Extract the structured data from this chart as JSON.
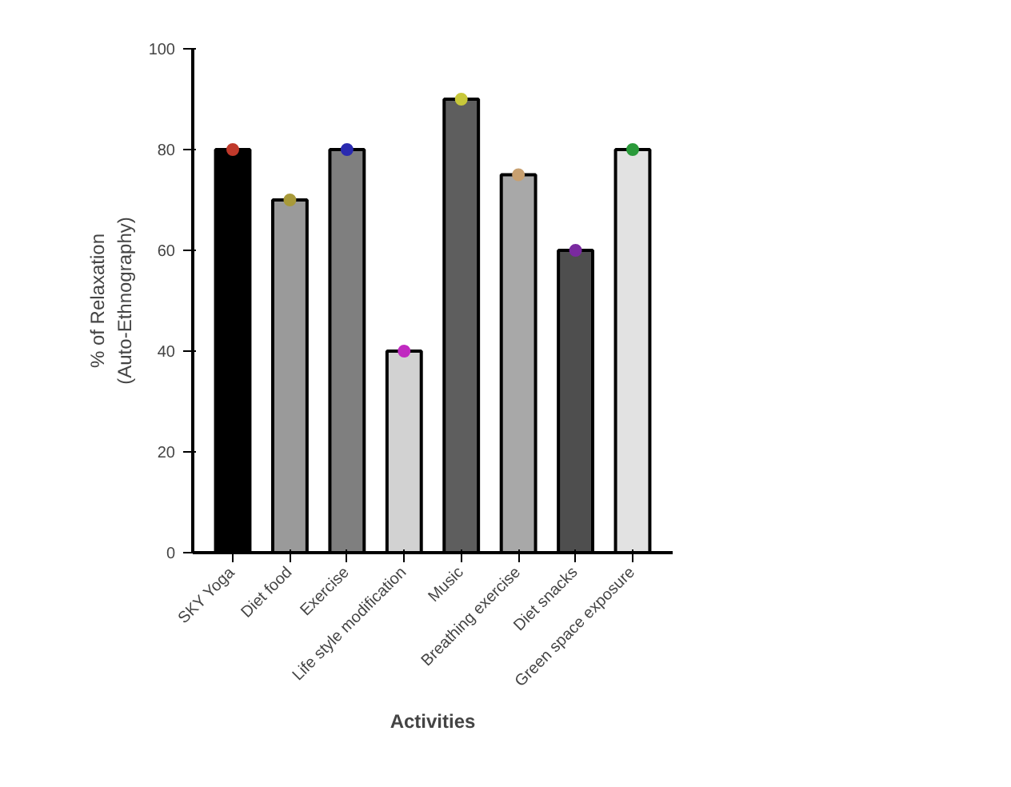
{
  "chart_data": {
    "type": "bar",
    "xlabel": "Activities",
    "ylabel": "% of Relaxation\n(Auto-Ethnography)",
    "categories": [
      "SKY Yoga",
      "Diet food",
      "Exercise",
      "Life style modification",
      "Music",
      "Breathing exercise",
      "Diet snacks",
      "Green space exposure"
    ],
    "series": [
      {
        "values": [
          80,
          70,
          80,
          40,
          90,
          75,
          60,
          80
        ],
        "colors": [
          "#000000",
          "#9a9a9a",
          "#7f7f7f",
          "#d2d2d2",
          "#5e5e5e",
          "#a8a8a8",
          "#4e4e4e",
          "#e2e2e2"
        ]
      },
      {
        "type": "scatter",
        "x": [
          "SKY Yoga",
          "Diet food",
          "Exercise",
          "Life style modification",
          "Music",
          "Breathing exercise",
          "Diet snacks",
          "Green space exposure"
        ],
        "values": [
          80,
          70,
          80,
          40,
          90,
          75,
          60,
          80
        ],
        "colors": [
          "#c0392b",
          "#a89a3a",
          "#2a2ab0",
          "#c02ac0",
          "#c8c83a",
          "#c8a070",
          "#7a2aa0",
          "#2a9a3a"
        ],
        "marker": "circle"
      }
    ],
    "ylim": [
      0,
      100
    ],
    "yticks": [
      0,
      20,
      40,
      60,
      80,
      100
    ],
    "grid": false
  }
}
